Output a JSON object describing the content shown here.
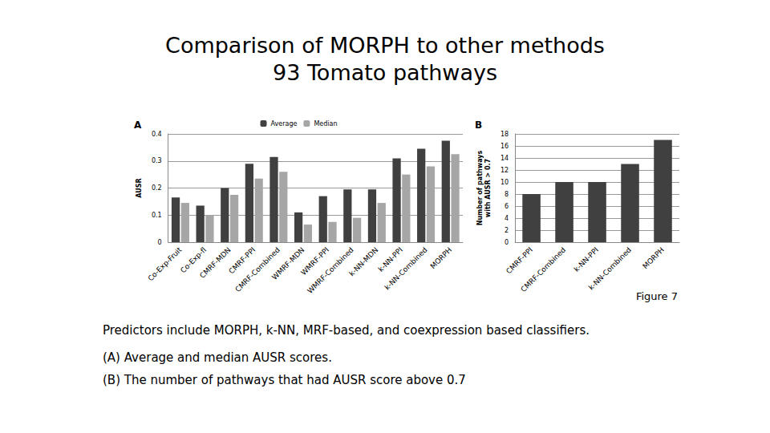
{
  "slide": {
    "title": [
      "Comparison of MORPH to other methods",
      "93 Tomato pathways"
    ],
    "figure_label": "Figure 7",
    "caption": [
      "Predictors include MORPH, k-NN, MRF-based, and coexpression based classifiers.",
      "(A) Average and median AUSR scores.",
      "(B) The number of pathways that had AUSR score above 0.7"
    ]
  },
  "chart_data": [
    {
      "type": "bar",
      "title": "A",
      "y_label": [
        "AUSR"
      ],
      "categories": [
        "Co-Exp-Fruit",
        "Co-Exp-fl",
        "CMRF-MDN",
        "CMRF-PPI",
        "CMRF-Combined",
        "WMRF-MDN",
        "WMRF-PPI",
        "WMRF-Combined",
        "k-NN-MDN",
        "k-NN-PPI",
        "k-NN-Combined",
        "MORPH"
      ],
      "series": [
        {
          "name": "Average",
          "color": "#404040",
          "values": [
            0.165,
            0.135,
            0.2,
            0.29,
            0.315,
            0.11,
            0.17,
            0.195,
            0.195,
            0.31,
            0.345,
            0.375
          ]
        },
        {
          "name": "Median",
          "color": "#a6a6a6",
          "values": [
            0.145,
            0.1,
            0.175,
            0.235,
            0.26,
            0.065,
            0.075,
            0.09,
            0.145,
            0.25,
            0.28,
            0.325
          ]
        }
      ],
      "ylim": [
        0,
        0.4
      ],
      "yticks": [
        0,
        0.1,
        0.2,
        0.3,
        0.4
      ],
      "grid": true,
      "legend": "top"
    },
    {
      "type": "bar",
      "title": "B",
      "y_label": [
        "Number of pathways",
        "with AUSR > 0.7"
      ],
      "categories": [
        "CMRF-PPI",
        "CMRF-Combined",
        "k-NN-PPI",
        "k-NN-Combined",
        "MORPH"
      ],
      "values": [
        8,
        10,
        10,
        13,
        17
      ],
      "color": "#404040",
      "ylim": [
        0,
        18
      ],
      "yticks": [
        0,
        2,
        4,
        6,
        8,
        10,
        12,
        14,
        16,
        18
      ],
      "grid": true
    }
  ]
}
